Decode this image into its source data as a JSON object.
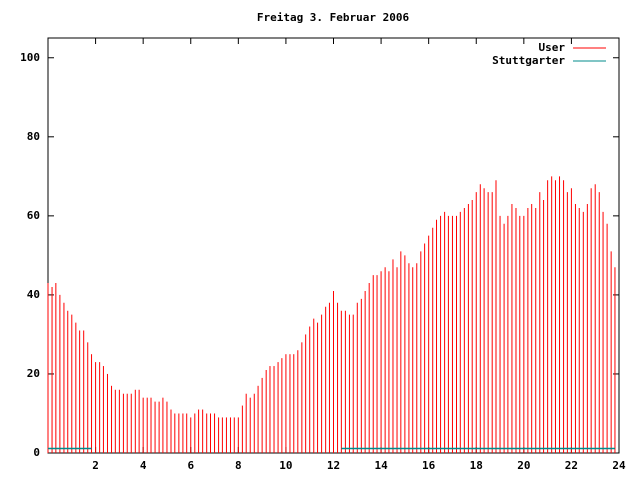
{
  "chart_data": {
    "type": "impulse",
    "title": "Freitag 3. Februar 2006",
    "x": [
      0,
      0.17,
      0.33,
      0.5,
      0.67,
      0.83,
      1,
      1.17,
      1.33,
      1.5,
      1.67,
      1.83,
      2,
      2.17,
      2.33,
      2.5,
      2.67,
      2.83,
      3,
      3.17,
      3.33,
      3.5,
      3.67,
      3.83,
      4,
      4.17,
      4.33,
      4.5,
      4.67,
      4.83,
      5,
      5.17,
      5.33,
      5.5,
      5.67,
      5.83,
      6,
      6.17,
      6.33,
      6.5,
      6.67,
      6.83,
      7,
      7.17,
      7.33,
      7.5,
      7.67,
      7.83,
      8,
      8.17,
      8.33,
      8.5,
      8.67,
      8.83,
      9,
      9.17,
      9.33,
      9.5,
      9.67,
      9.83,
      10,
      10.17,
      10.33,
      10.5,
      10.67,
      10.83,
      11,
      11.17,
      11.33,
      11.5,
      11.67,
      11.83,
      12,
      12.17,
      12.33,
      12.5,
      12.67,
      12.83,
      13,
      13.17,
      13.33,
      13.5,
      13.67,
      13.83,
      14,
      14.17,
      14.33,
      14.5,
      14.67,
      14.83,
      15,
      15.17,
      15.33,
      15.5,
      15.67,
      15.83,
      16,
      16.17,
      16.33,
      16.5,
      16.67,
      16.83,
      17,
      17.17,
      17.33,
      17.5,
      17.67,
      17.83,
      18,
      18.17,
      18.33,
      18.5,
      18.67,
      18.83,
      19,
      19.17,
      19.33,
      19.5,
      19.67,
      19.83,
      20,
      20.17,
      20.33,
      20.5,
      20.67,
      20.83,
      21,
      21.17,
      21.33,
      21.5,
      21.67,
      21.83,
      22,
      22.17,
      22.33,
      22.5,
      22.67,
      22.83,
      23,
      23.17,
      23.33,
      23.5,
      23.67,
      23.83
    ],
    "series": [
      {
        "name": "User",
        "color": "#ff0000",
        "values": [
          43,
          42,
          43,
          40,
          38,
          36,
          35,
          33,
          31,
          31,
          28,
          25,
          23,
          23,
          22,
          20,
          17,
          16,
          16,
          15,
          15,
          15,
          16,
          16,
          14,
          14,
          14,
          13,
          13,
          14,
          13,
          11,
          10,
          10,
          10,
          10,
          9,
          10,
          11,
          11,
          10,
          10,
          10,
          9,
          9,
          9,
          9,
          9,
          9,
          12,
          15,
          14,
          15,
          17,
          19,
          21,
          22,
          22,
          23,
          24,
          25,
          25,
          25,
          26,
          28,
          30,
          32,
          34,
          33,
          35,
          37,
          38,
          41,
          38,
          36,
          36,
          35,
          35,
          38,
          39,
          41,
          43,
          45,
          45,
          46,
          47,
          46,
          49,
          47,
          51,
          50,
          48,
          47,
          48,
          51,
          53,
          55,
          57,
          59,
          60,
          61,
          60,
          60,
          60,
          61,
          62,
          63,
          64,
          66,
          68,
          67,
          66,
          66,
          69,
          60,
          58,
          60,
          63,
          62,
          60,
          60,
          62,
          63,
          62,
          66,
          64,
          69,
          70,
          69,
          70,
          69,
          66,
          67,
          63,
          62,
          61,
          63,
          67,
          68,
          66,
          61,
          58,
          51,
          47
        ]
      },
      {
        "name": "Stuttgarter",
        "color": "#008b8b",
        "values": [
          1,
          1,
          1,
          1,
          1,
          1,
          1,
          1,
          1,
          1,
          1,
          1,
          null,
          null,
          null,
          null,
          null,
          null,
          null,
          null,
          null,
          null,
          null,
          null,
          null,
          null,
          null,
          null,
          null,
          null,
          null,
          null,
          null,
          null,
          null,
          null,
          null,
          null,
          null,
          null,
          null,
          null,
          null,
          null,
          null,
          null,
          null,
          null,
          null,
          null,
          null,
          null,
          null,
          null,
          null,
          null,
          null,
          null,
          null,
          null,
          null,
          null,
          null,
          null,
          null,
          null,
          null,
          null,
          null,
          null,
          null,
          null,
          null,
          null,
          1,
          1,
          1,
          1,
          1,
          1,
          1,
          1,
          1,
          1,
          1,
          1,
          1,
          1,
          1,
          1,
          1,
          1,
          1,
          1,
          1,
          1,
          1,
          1,
          1,
          1,
          1,
          1,
          1,
          1,
          1,
          1,
          1,
          1,
          1,
          1,
          1,
          1,
          1,
          1,
          1,
          1,
          1,
          1,
          1,
          1,
          1,
          1,
          1,
          1,
          1,
          1,
          1,
          1,
          1,
          1,
          1,
          1,
          1,
          1,
          1,
          1,
          1,
          1,
          1,
          1,
          1,
          1,
          1,
          1
        ]
      }
    ],
    "xlim": [
      0,
      24
    ],
    "xticks": [
      2,
      4,
      6,
      8,
      10,
      12,
      14,
      16,
      18,
      20,
      22,
      24
    ],
    "ylim": [
      0,
      105
    ],
    "yticks": [
      0,
      20,
      40,
      60,
      80,
      100
    ],
    "legend": "top-right"
  }
}
